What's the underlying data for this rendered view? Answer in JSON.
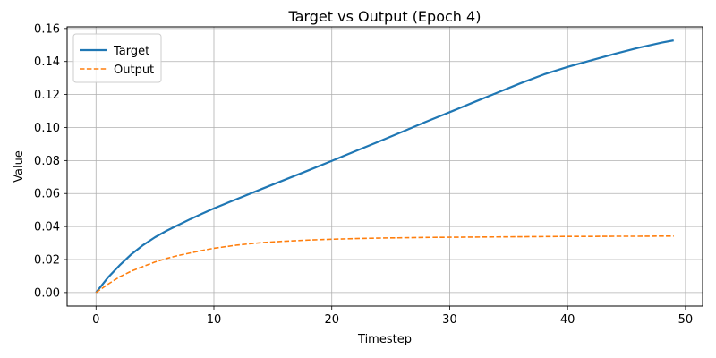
{
  "chart_data": {
    "type": "line",
    "title": "Target vs Output (Epoch 4)",
    "xlabel": "Timestep",
    "ylabel": "Value",
    "xlim": [
      -2.45,
      51.45
    ],
    "ylim": [
      -0.0082,
      0.161
    ],
    "xticks": [
      0,
      10,
      20,
      30,
      40,
      50
    ],
    "yticks": [
      0.0,
      0.02,
      0.04,
      0.06,
      0.08,
      0.1,
      0.12,
      0.14,
      0.16
    ],
    "ytick_labels": [
      "0.00",
      "0.02",
      "0.04",
      "0.06",
      "0.08",
      "0.10",
      "0.12",
      "0.14",
      "0.16"
    ],
    "grid": true,
    "legend_position": "top-left",
    "series": [
      {
        "name": "Target",
        "color": "#1f77b4",
        "style": "solid",
        "x": [
          0,
          1,
          2,
          3,
          4,
          5,
          6,
          7,
          8,
          9,
          10,
          12,
          14,
          16,
          18,
          20,
          22,
          24,
          26,
          28,
          30,
          32,
          34,
          36,
          38,
          40,
          42,
          44,
          46,
          48,
          49
        ],
        "y": [
          0.0,
          0.009,
          0.0165,
          0.0232,
          0.0288,
          0.0335,
          0.0375,
          0.041,
          0.0445,
          0.0478,
          0.051,
          0.0568,
          0.0626,
          0.0683,
          0.074,
          0.0798,
          0.0857,
          0.0915,
          0.0975,
          0.1035,
          0.1093,
          0.1152,
          0.121,
          0.1268,
          0.1322,
          0.1367,
          0.1407,
          0.1446,
          0.1483,
          0.1515,
          0.1528
        ]
      },
      {
        "name": "Output",
        "color": "#ff7f0e",
        "style": "dashed",
        "x": [
          0,
          1,
          2,
          3,
          4,
          5,
          6,
          7,
          8,
          9,
          10,
          12,
          14,
          16,
          18,
          20,
          22,
          24,
          26,
          28,
          30,
          32,
          34,
          36,
          38,
          40,
          42,
          44,
          46,
          48,
          49
        ],
        "y": [
          0.0,
          0.005,
          0.0095,
          0.013,
          0.0158,
          0.0185,
          0.0207,
          0.0225,
          0.024,
          0.0255,
          0.0268,
          0.0288,
          0.0302,
          0.0311,
          0.0318,
          0.0323,
          0.0327,
          0.033,
          0.0332,
          0.0334,
          0.0335,
          0.0336,
          0.0337,
          0.0338,
          0.0339,
          0.034,
          0.034,
          0.0341,
          0.0341,
          0.0342,
          0.0342
        ]
      }
    ]
  }
}
